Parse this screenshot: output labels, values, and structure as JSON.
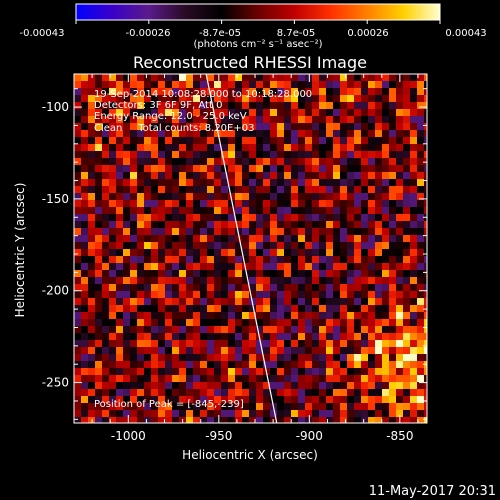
{
  "colorbar": {
    "ticks": [
      "-0.00043",
      "-0.00026",
      "-8.7e-05",
      "8.7e-05",
      "0.00026",
      "0.00043"
    ],
    "units_label": "(photons cm⁻² s⁻¹ asec⁻²)",
    "colors": [
      "#0000ff",
      "#3a00c8",
      "#5a1a8a",
      "#2a0a25",
      "#000000",
      "#6b0000",
      "#c00000",
      "#ff3000",
      "#ff8000",
      "#ffd000",
      "#ffffd0"
    ]
  },
  "chart_data": {
    "type": "heatmap",
    "title": "Reconstructed RHESSI Image",
    "xlabel": "Heliocentric X (arcsec)",
    "ylabel": "Heliocentric Y (arcsec)",
    "xlim": [
      -1030,
      -835
    ],
    "ylim": [
      -272,
      -82
    ],
    "xticks": [
      -1000,
      -950,
      -900,
      -850
    ],
    "yticks": [
      -250,
      -200,
      -150,
      -100
    ],
    "xtick_labels": [
      "-1000",
      "-950",
      "-900",
      "-850"
    ],
    "ytick_labels": [
      "-250",
      "-200",
      "-150",
      "-100"
    ],
    "colorscale_range": [
      -0.00043,
      0.00043
    ],
    "limb_line": {
      "x": [
        -957,
        -918
      ],
      "y": [
        -82,
        -272
      ]
    },
    "peak": {
      "x": -845,
      "y": -239
    },
    "annotations": [
      "19-Sep-2014 10:08:28.000 to 10:18:28.000",
      "Detectors: 3F 6F 9F, Att 0",
      "Energy Range: 12.0 - 25.0 keV",
      "Clean     Total counts: 8.20E+03",
      "Position of Peak = [-845,-239]"
    ]
  },
  "footer": {
    "date": "11-May-2017 20:31"
  }
}
